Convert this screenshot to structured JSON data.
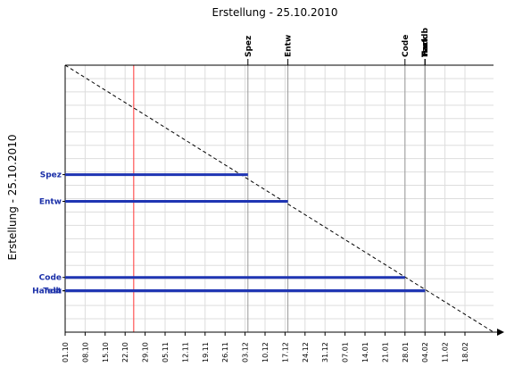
{
  "chart_data": {
    "type": "bar",
    "title": "Erstellung - 25.10.2010",
    "ylabel": "Erstellung - 25.10.2010",
    "xlabel": "",
    "x_ticks": [
      "01.10",
      "08.10",
      "15.10",
      "22.10",
      "29.10",
      "05.11",
      "12.11",
      "19.11",
      "26.11",
      "03.12",
      "10.12",
      "17.12",
      "24.12",
      "31.12",
      "07.01",
      "14.01",
      "21.01",
      "28.01",
      "04.02",
      "11.02",
      "18.02"
    ],
    "x_start_day": 0,
    "x_end_day": 150,
    "today_day": 24,
    "grid": true,
    "bars": [
      {
        "label": "Spez",
        "end_day": 64
      },
      {
        "label": "Entw",
        "end_day": 78
      },
      {
        "label": "Code",
        "end_day": 119
      },
      {
        "label": "Test",
        "end_day": 126
      },
      {
        "label": "Handb",
        "end_day": 126
      }
    ],
    "milestones": [
      {
        "label": "Spez",
        "day": 64
      },
      {
        "label": "Entw",
        "day": 78
      },
      {
        "label": "Code",
        "day": 119
      },
      {
        "label": "Test",
        "day": 126
      },
      {
        "label": "Handb",
        "day": 126
      },
      {
        "label": "Pack",
        "day": 126
      }
    ],
    "colors": {
      "bar": "#1f35b3",
      "today_line": "#ff5555",
      "milestone_line": "#999999",
      "grid": "#dddddd"
    }
  }
}
